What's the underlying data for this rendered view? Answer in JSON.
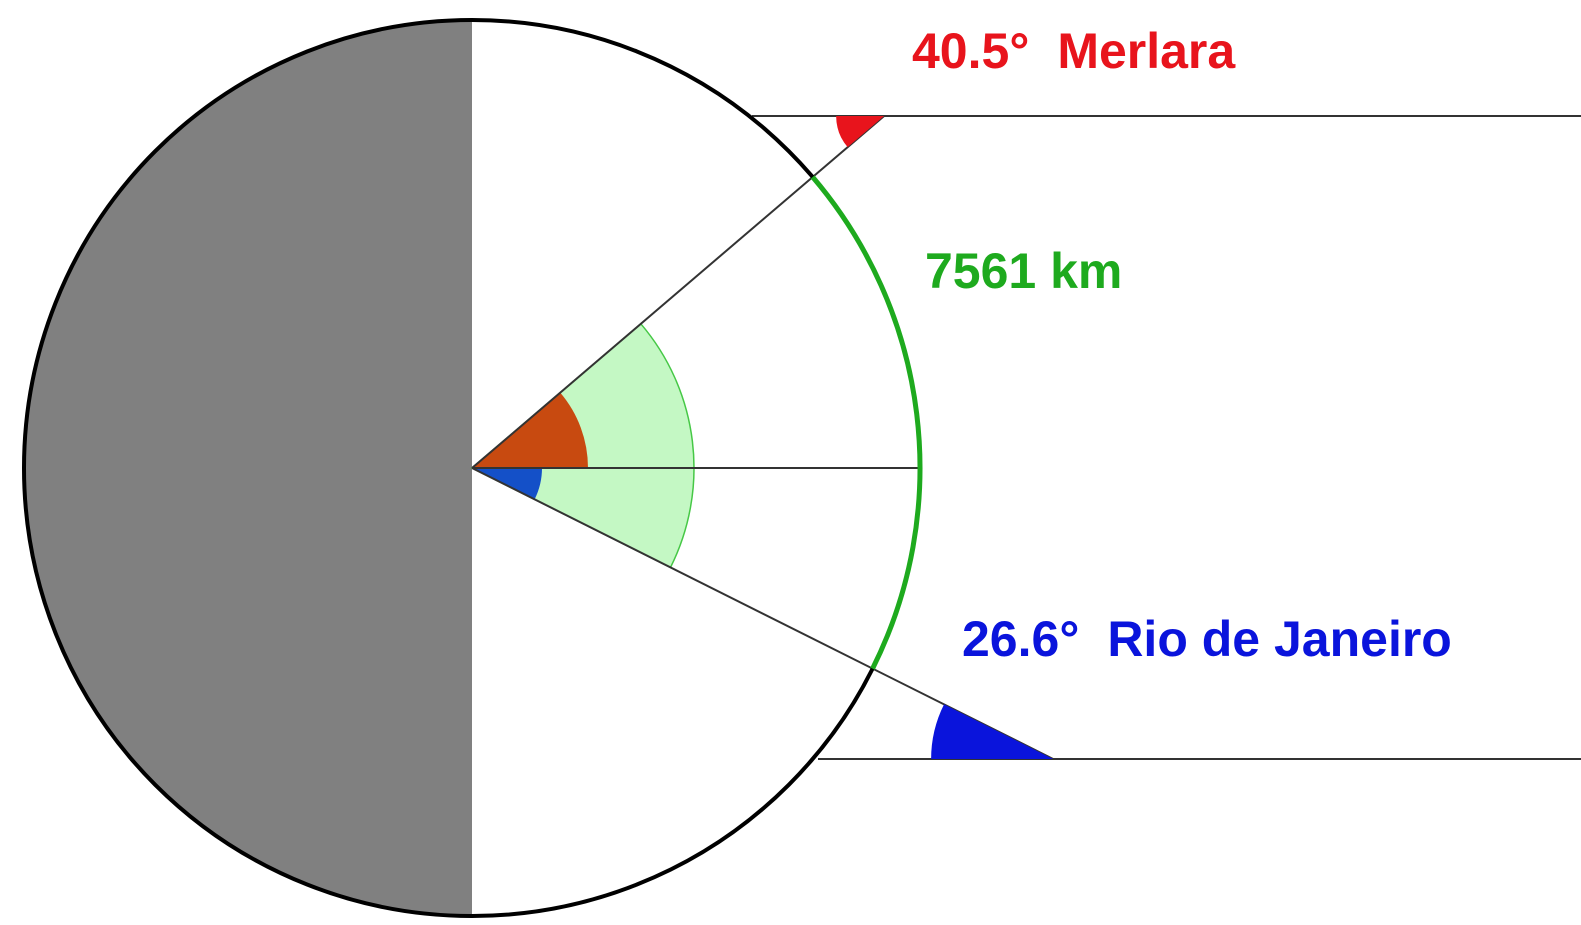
{
  "labels": {
    "top_angle": "40.5°",
    "top_city": "Merlara",
    "arc_distance": "7561 km",
    "bottom_angle": "26.6°",
    "bottom_city": "Rio de Janeiro"
  },
  "angles": {
    "merlara_deg": 40.5,
    "rio_deg": 26.6
  },
  "colors": {
    "night_side": "#808080",
    "merlara": "#e8141c",
    "merlara_center_sector": "#c84a10",
    "rio": "#0a14dc",
    "rio_center_sector": "#1450c8",
    "distance_arc": "#1eaa1e",
    "sector_fill": "#c4f8c4",
    "sector_edge": "#46c846",
    "outline": "#000000",
    "ray": "#333333"
  }
}
